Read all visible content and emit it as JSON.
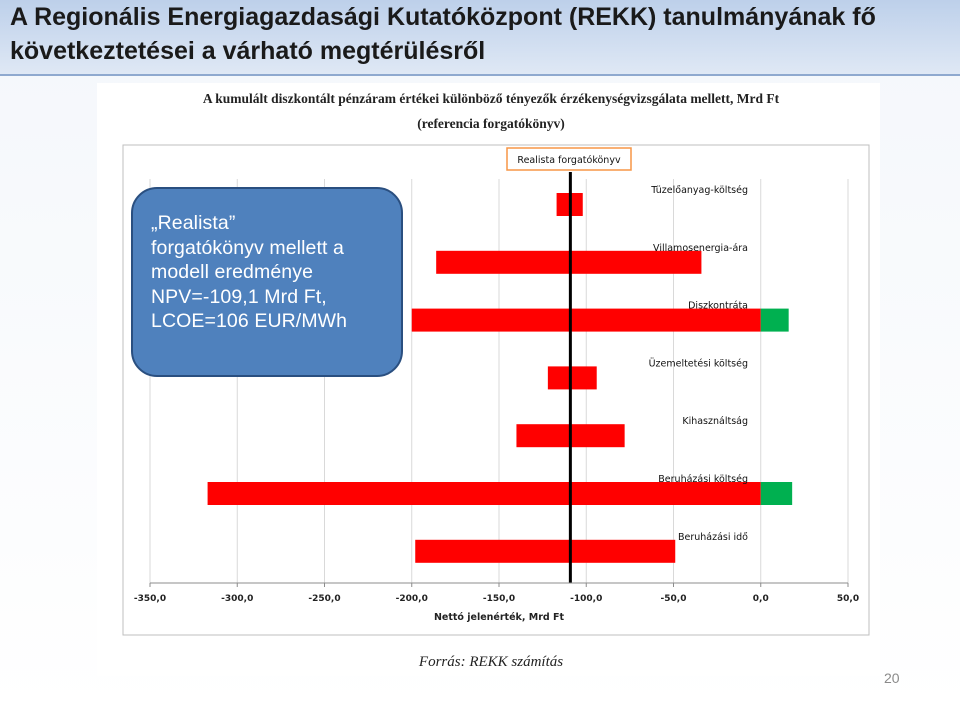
{
  "slide": {
    "title_line1": "A Regionális Energiagazdasági Kutatóközpont (REKK) tanulmányának fő",
    "title_line2": "következtetései a várható megtérülésről",
    "page_number": "20"
  },
  "callout": {
    "lines": [
      "„Realista”",
      "forgatókönyv mellett a",
      "modell eredménye",
      "NPV=-109,1 Mrd Ft,",
      "LCOE=106 EUR/MWh"
    ]
  },
  "chart_data": {
    "type": "bar",
    "orientation": "horizontal",
    "title_line1": "A kumulált diszkontált pénzáram értékei különböző tényezők érzékenységvizsgálata mellett, Mrd Ft",
    "title_line2": "(referencia forgatókönyv)",
    "xlabel": "Nettó jelenérték, Mrd Ft",
    "source": "Forrás: REKK számítás",
    "xlim": [
      -350,
      50
    ],
    "xticks": [
      -350,
      -300,
      -250,
      -200,
      -150,
      -100,
      -50,
      0,
      50
    ],
    "xtick_labels": [
      "-350,0",
      "-300,0",
      "-250,0",
      "-200,0",
      "-150,0",
      "-100,0",
      "-50,0",
      "0,0",
      "50,0"
    ],
    "reference": {
      "label": "Realista forgatókönyv",
      "value": -109.1
    },
    "categories": [
      "Tüzelőanyag-költség",
      "Villamosenergia-ára",
      "Diszkontráta",
      "Üzemeltetési költség",
      "Kihasználtság",
      "Beruházási költség",
      "Beruházási idő"
    ],
    "bars": [
      {
        "category": "Tüzelőanyag-költség",
        "red": [
          -117,
          -102
        ],
        "green": null
      },
      {
        "category": "Villamosenergia-ára",
        "red": [
          -186,
          -34
        ],
        "green": null
      },
      {
        "category": "Diszkontráta",
        "red": [
          -200,
          0
        ],
        "green": [
          0,
          16
        ]
      },
      {
        "category": "Üzemeltetési költség",
        "red": [
          -122,
          -94
        ],
        "green": null
      },
      {
        "category": "Kihasználtság",
        "red": [
          -140,
          -78
        ],
        "green": null
      },
      {
        "category": "Beruházási költség",
        "red": [
          -317,
          0
        ],
        "green": [
          0,
          18
        ]
      },
      {
        "category": "Beruházási idő",
        "red": [
          -198,
          -49
        ],
        "green": null
      }
    ],
    "colors": {
      "negative": "#ff0000",
      "positive": "#00b050",
      "reference_line": "#000000",
      "reference_box_border": "#f79646"
    },
    "grid": {
      "vertical": true
    }
  }
}
